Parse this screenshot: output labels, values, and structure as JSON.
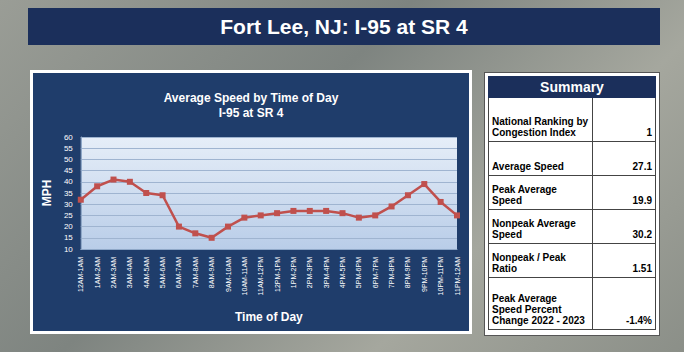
{
  "header": {
    "title": "Fort Lee, NJ: I-95 at SR 4"
  },
  "chart_data": {
    "type": "line",
    "title": "Average Speed by Time of Day",
    "subtitle": "I-95 at SR 4",
    "x_label": "Time of Day",
    "y_label": "MPH",
    "categories": [
      "12AM-1AM",
      "1AM-2AM",
      "2AM-3AM",
      "3AM-4AM",
      "4AM-5AM",
      "5AM-6AM",
      "6AM-7AM",
      "7AM-8AM",
      "8AM-9AM",
      "9AM-10AM",
      "10AM-11AM",
      "11AM-12PM",
      "12PM-1PM",
      "1PM-2PM",
      "2PM-3PM",
      "3PM-4PM",
      "4PM-5PM",
      "5PM-6PM",
      "6PM-7PM",
      "7PM-8PM",
      "8PM-9PM",
      "9PM-10PM",
      "10PM-11PM",
      "11PM-12AM"
    ],
    "values": [
      32,
      38,
      41,
      40,
      35,
      34,
      20,
      17,
      15,
      20,
      24,
      25,
      26,
      27,
      27,
      27,
      26,
      24,
      25,
      29,
      34,
      39,
      31,
      25
    ],
    "color": "#c0504d",
    "marker": "square",
    "line_style": "solid",
    "ylim": [
      10,
      60
    ],
    "yticks": [
      10,
      15,
      20,
      25,
      30,
      35,
      40,
      45,
      50,
      55,
      60
    ],
    "grid": true
  },
  "summary": {
    "title": "Summary",
    "rows": [
      [
        "National Ranking by Congestion Index",
        "1"
      ],
      [
        "Average Speed",
        "27.1"
      ],
      [
        "Peak Average Speed",
        "19.9"
      ],
      [
        "Nonpeak Average Speed",
        "30.2"
      ],
      [
        "Nonpeak / Peak Ratio",
        "1.51"
      ],
      [
        "Peak Average Speed Percent Change 2022 - 2023",
        "-1.4%"
      ]
    ]
  }
}
